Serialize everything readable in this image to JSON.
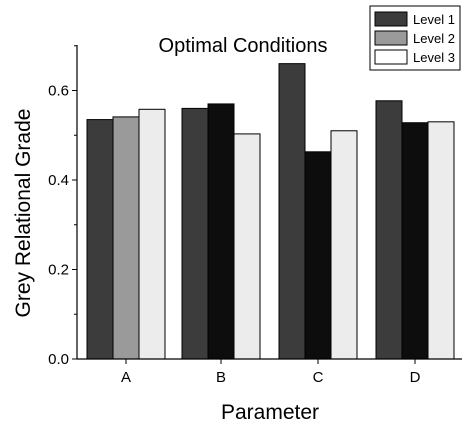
{
  "chart_data": {
    "type": "bar",
    "title": "Optimal Conditions",
    "xlabel": "Parameter",
    "ylabel": "Grey Relational Grade",
    "categories": [
      "A",
      "B",
      "C",
      "D"
    ],
    "ylim": [
      0,
      0.7
    ],
    "yticks": [
      "0.0",
      "0.2",
      "0.4",
      "0.6"
    ],
    "grid": false,
    "legend_position": "top-right",
    "legend": [
      "Level 1",
      "Level 2",
      "Level 3"
    ],
    "series": [
      {
        "name": "Level 1",
        "values": [
          0.535,
          0.56,
          0.66,
          0.577
        ]
      },
      {
        "name": "Level 2",
        "values": [
          0.541,
          0.57,
          0.463,
          0.528
        ]
      },
      {
        "name": "Level 3",
        "values": [
          0.558,
          0.503,
          0.51,
          0.53
        ]
      }
    ],
    "bar_colors": [
      [
        "#3c3c3c",
        "#9a9a9a",
        "#ececec"
      ],
      [
        "#3c3c3c",
        "#0d0d0d",
        "#ececec"
      ],
      [
        "#3c3c3c",
        "#0d0d0d",
        "#ececec"
      ],
      [
        "#3c3c3c",
        "#0d0d0d",
        "#ececec"
      ]
    ],
    "legend_colors": [
      "#3c3c3c",
      "#9a9a9a",
      "#ffffff"
    ]
  }
}
